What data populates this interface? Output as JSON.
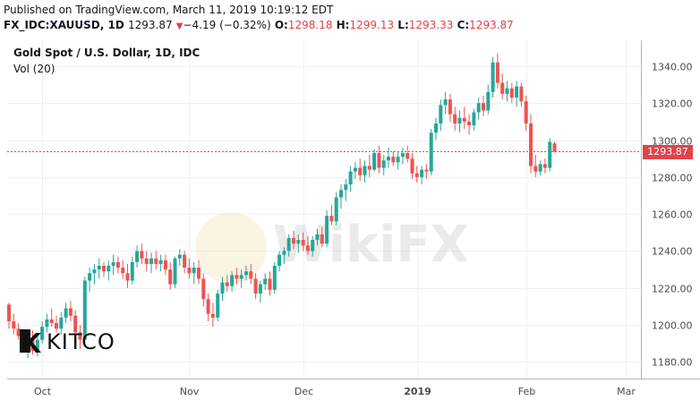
{
  "header": {
    "published": "Published on TradingView.com, March 11, 2019 10:19:12 EDT",
    "symbol": "FX_IDC:XAUUSD, 1D",
    "last": "1293.87",
    "change": "−4.19 (−0.32%)",
    "o_label": "O:",
    "o_value": "1298.18",
    "h_label": "H:",
    "h_value": "1299.13",
    "l_label": "L:",
    "l_value": "1293.33",
    "c_label": "C:",
    "c_value": "1293.87"
  },
  "legend": {
    "title": "Gold Spot / U.S. Dollar, 1D, IDC",
    "volume": "Vol (20)"
  },
  "watermark": "WikiFX",
  "logo": "KITCO",
  "colors": {
    "up": "#26a69a",
    "down": "#ef5350",
    "grid": "#eef0f3",
    "axis_text": "#4a4a4a",
    "price_line": "#e0434d"
  },
  "chart_data": {
    "type": "candlestick",
    "y_ticks": [
      1180,
      1200,
      1220,
      1240,
      1260,
      1280,
      1300,
      1320,
      1340
    ],
    "ylim": [
      1171,
      1354
    ],
    "x_ticks": [
      "Oct",
      "Nov",
      "Dec",
      "2019",
      "Feb",
      "Mar"
    ],
    "x_tick_index": [
      7,
      38,
      62,
      86,
      109,
      130
    ],
    "last_price": "1293.87",
    "candles": [
      [
        1211,
        1212,
        1198,
        1202
      ],
      [
        1202,
        1206,
        1195,
        1198
      ],
      [
        1198,
        1201,
        1192,
        1194
      ],
      [
        1194,
        1197,
        1185,
        1188
      ],
      [
        1188,
        1195,
        1182,
        1192
      ],
      [
        1192,
        1197,
        1184,
        1186
      ],
      [
        1186,
        1194,
        1183,
        1192
      ],
      [
        1192,
        1202,
        1190,
        1199
      ],
      [
        1199,
        1206,
        1196,
        1203
      ],
      [
        1203,
        1209,
        1199,
        1201
      ],
      [
        1201,
        1205,
        1196,
        1198
      ],
      [
        1198,
        1207,
        1195,
        1204
      ],
      [
        1204,
        1212,
        1201,
        1209
      ],
      [
        1209,
        1213,
        1202,
        1205
      ],
      [
        1205,
        1208,
        1192,
        1196
      ],
      [
        1196,
        1200,
        1187,
        1192
      ],
      [
        1192,
        1226,
        1190,
        1224
      ],
      [
        1224,
        1231,
        1218,
        1228
      ],
      [
        1228,
        1233,
        1222,
        1230
      ],
      [
        1230,
        1236,
        1225,
        1232
      ],
      [
        1232,
        1234,
        1226,
        1229
      ],
      [
        1229,
        1235,
        1224,
        1232
      ],
      [
        1232,
        1238,
        1227,
        1234
      ],
      [
        1234,
        1237,
        1228,
        1231
      ],
      [
        1231,
        1235,
        1225,
        1228
      ],
      [
        1228,
        1233,
        1220,
        1224
      ],
      [
        1224,
        1237,
        1222,
        1234
      ],
      [
        1234,
        1243,
        1231,
        1240
      ],
      [
        1240,
        1244,
        1233,
        1236
      ],
      [
        1236,
        1240,
        1229,
        1233
      ],
      [
        1233,
        1239,
        1228,
        1236
      ],
      [
        1236,
        1240,
        1230,
        1233
      ],
      [
        1233,
        1238,
        1229,
        1235
      ],
      [
        1235,
        1238,
        1227,
        1230
      ],
      [
        1230,
        1234,
        1219,
        1222
      ],
      [
        1222,
        1237,
        1220,
        1236
      ],
      [
        1236,
        1241,
        1232,
        1238
      ],
      [
        1238,
        1240,
        1228,
        1231
      ],
      [
        1231,
        1236,
        1225,
        1228
      ],
      [
        1228,
        1234,
        1222,
        1231
      ],
      [
        1231,
        1235,
        1222,
        1225
      ],
      [
        1225,
        1228,
        1210,
        1214
      ],
      [
        1214,
        1217,
        1202,
        1206
      ],
      [
        1206,
        1212,
        1199,
        1204
      ],
      [
        1204,
        1219,
        1202,
        1217
      ],
      [
        1217,
        1226,
        1213,
        1223
      ],
      [
        1223,
        1227,
        1218,
        1221
      ],
      [
        1221,
        1229,
        1218,
        1227
      ],
      [
        1227,
        1231,
        1222,
        1225
      ],
      [
        1225,
        1230,
        1220,
        1227
      ],
      [
        1227,
        1232,
        1224,
        1229
      ],
      [
        1229,
        1233,
        1222,
        1225
      ],
      [
        1225,
        1228,
        1214,
        1217
      ],
      [
        1217,
        1224,
        1212,
        1222
      ],
      [
        1222,
        1228,
        1219,
        1225
      ],
      [
        1225,
        1229,
        1216,
        1219
      ],
      [
        1219,
        1234,
        1217,
        1232
      ],
      [
        1232,
        1240,
        1229,
        1238
      ],
      [
        1238,
        1242,
        1233,
        1240
      ],
      [
        1240,
        1249,
        1237,
        1247
      ],
      [
        1247,
        1251,
        1241,
        1244
      ],
      [
        1244,
        1249,
        1239,
        1246
      ],
      [
        1246,
        1250,
        1240,
        1243
      ],
      [
        1243,
        1248,
        1238,
        1240
      ],
      [
        1240,
        1248,
        1237,
        1246
      ],
      [
        1246,
        1252,
        1243,
        1249
      ],
      [
        1249,
        1253,
        1242,
        1244
      ],
      [
        1244,
        1262,
        1242,
        1259
      ],
      [
        1259,
        1265,
        1254,
        1256
      ],
      [
        1256,
        1272,
        1254,
        1269
      ],
      [
        1269,
        1276,
        1263,
        1273
      ],
      [
        1273,
        1279,
        1267,
        1276
      ],
      [
        1276,
        1286,
        1272,
        1283
      ],
      [
        1283,
        1288,
        1279,
        1285
      ],
      [
        1285,
        1290,
        1278,
        1281
      ],
      [
        1281,
        1289,
        1277,
        1286
      ],
      [
        1286,
        1292,
        1280,
        1284
      ],
      [
        1284,
        1295,
        1283,
        1293
      ],
      [
        1293,
        1297,
        1282,
        1285
      ],
      [
        1285,
        1292,
        1281,
        1289
      ],
      [
        1289,
        1296,
        1285,
        1291
      ],
      [
        1291,
        1294,
        1286,
        1288
      ],
      [
        1288,
        1294,
        1284,
        1291
      ],
      [
        1291,
        1296,
        1287,
        1293
      ],
      [
        1293,
        1297,
        1288,
        1290
      ],
      [
        1290,
        1293,
        1279,
        1282
      ],
      [
        1282,
        1286,
        1277,
        1280
      ],
      [
        1280,
        1286,
        1276,
        1284
      ],
      [
        1284,
        1287,
        1279,
        1283
      ],
      [
        1283,
        1306,
        1281,
        1304
      ],
      [
        1304,
        1312,
        1300,
        1309
      ],
      [
        1309,
        1322,
        1305,
        1319
      ],
      [
        1319,
        1326,
        1314,
        1322
      ],
      [
        1322,
        1325,
        1310,
        1314
      ],
      [
        1314,
        1318,
        1305,
        1309
      ],
      [
        1309,
        1316,
        1304,
        1312
      ],
      [
        1312,
        1318,
        1306,
        1310
      ],
      [
        1310,
        1314,
        1303,
        1308
      ],
      [
        1308,
        1317,
        1305,
        1315
      ],
      [
        1315,
        1323,
        1311,
        1320
      ],
      [
        1320,
        1324,
        1313,
        1316
      ],
      [
        1316,
        1330,
        1314,
        1326
      ],
      [
        1326,
        1345,
        1323,
        1342
      ],
      [
        1342,
        1347,
        1328,
        1331
      ],
      [
        1331,
        1336,
        1322,
        1325
      ],
      [
        1325,
        1332,
        1321,
        1328
      ],
      [
        1328,
        1331,
        1320,
        1323
      ],
      [
        1323,
        1332,
        1318,
        1329
      ],
      [
        1329,
        1331,
        1318,
        1321
      ],
      [
        1321,
        1324,
        1305,
        1309
      ],
      [
        1309,
        1314,
        1282,
        1286
      ],
      [
        1286,
        1292,
        1280,
        1283
      ],
      [
        1283,
        1289,
        1281,
        1287
      ],
      [
        1287,
        1290,
        1282,
        1285
      ],
      [
        1285,
        1301,
        1283,
        1299
      ],
      [
        1298.18,
        1299.13,
        1293.33,
        1293.87
      ]
    ]
  }
}
